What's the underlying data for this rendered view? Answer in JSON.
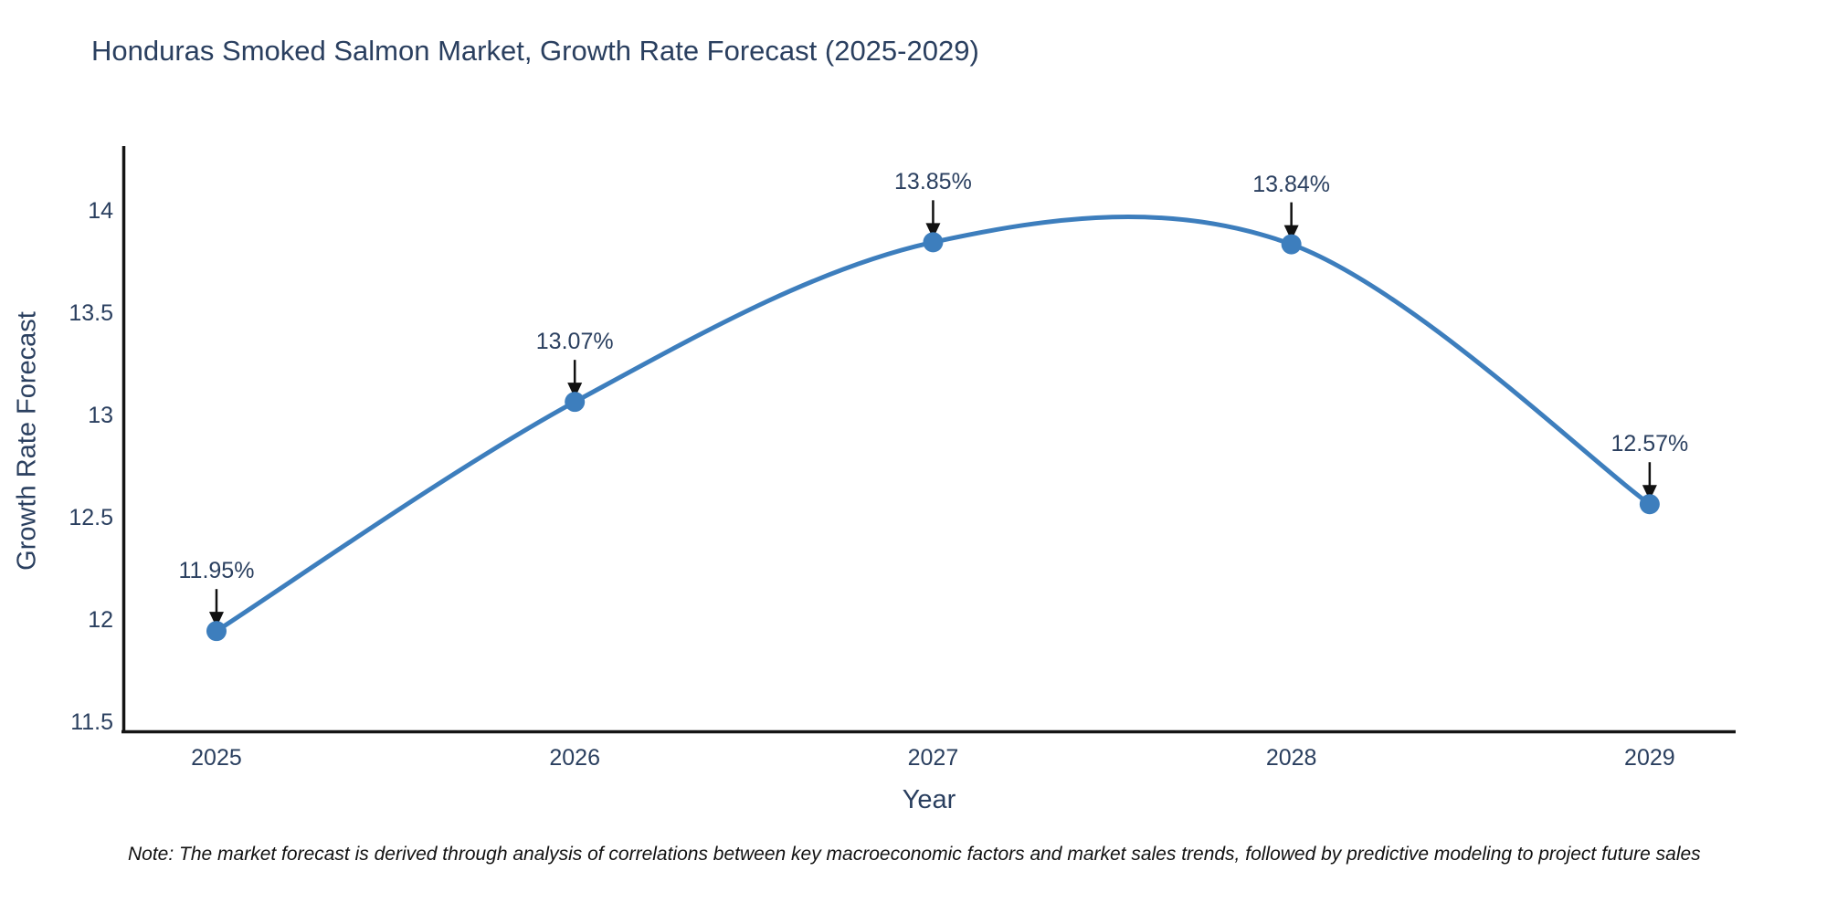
{
  "title": "Honduras Smoked Salmon Market, Growth Rate Forecast (2025-2029)",
  "note": "Note: The market forecast is derived through analysis of correlations between key macroeconomic factors and market sales trends, followed by predictive modeling to project future sales",
  "chart_data": {
    "type": "line",
    "title": "Honduras Smoked Salmon Market, Growth Rate Forecast (2025-2029)",
    "xlabel": "Year",
    "ylabel": "Growth Rate Forecast",
    "x": [
      2025,
      2026,
      2027,
      2028,
      2029
    ],
    "values": [
      11.95,
      13.07,
      13.85,
      13.84,
      12.57
    ],
    "point_labels": [
      "11.95%",
      "13.07%",
      "13.85%",
      "13.84%",
      "12.57%"
    ],
    "x_ticks": [
      "2025",
      "2026",
      "2027",
      "2028",
      "2029"
    ],
    "x_tick_values": [
      2025,
      2026,
      2027,
      2028,
      2029
    ],
    "y_ticks": [
      "11.5",
      "12",
      "12.5",
      "13",
      "13.5",
      "14"
    ],
    "y_tick_values": [
      11.5,
      12,
      12.5,
      13,
      13.5,
      14
    ],
    "xlim": [
      2024.74,
      2029.24
    ],
    "ylim": [
      11.46,
      14.32
    ],
    "line_shape": "spline",
    "grid": false,
    "legend": "none",
    "colors": {
      "line": "#3d7ebd",
      "marker": "#3d7ebd",
      "axis": "#151515",
      "tick_text": "#2a3f5f",
      "annotation_text": "#2a3f5f",
      "annotation_arrow": "#111111",
      "note_text": "#111111",
      "background": "#ffffff"
    }
  }
}
